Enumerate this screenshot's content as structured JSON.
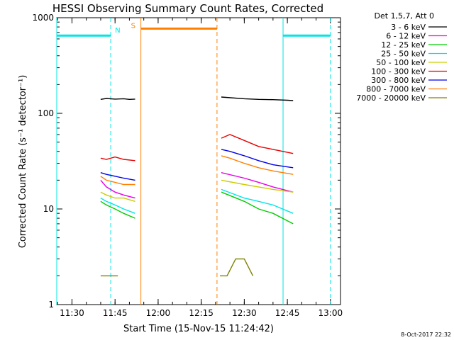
{
  "chart_data": {
    "type": "line",
    "title": "HESSI Observing Summary Count Rates, Corrected",
    "xlabel": "Start Time (15-Nov-15 11:24:42)",
    "ylabel": "Corrected Count Rate (s⁻¹ detector⁻¹)",
    "y_scale": "log",
    "ylim": [
      1,
      1000
    ],
    "xlim": [
      "11:24:42",
      "13:03:30"
    ],
    "x_ticks": [
      "11:30",
      "11:45",
      "12:00",
      "12:15",
      "12:30",
      "12:45",
      "13:00"
    ],
    "y_ticks": [
      "1",
      "10",
      "100",
      "1000"
    ],
    "legend_title": "Det 1,5,7, Att 0",
    "legend_position": "right-outside",
    "series": [
      {
        "name": "3 - 6 keV",
        "color": "#000000",
        "segments": [
          {
            "x": [
              "11:40:00",
              "11:42:00",
              "11:45:00",
              "11:48:00",
              "11:50:00",
              "11:52:00"
            ],
            "y": [
              140,
              143,
              141,
              142,
              140,
              141
            ]
          },
          {
            "x": [
              "12:22:00",
              "12:30:00",
              "12:35:00",
              "12:40:00",
              "12:45:00",
              "12:47:00"
            ],
            "y": [
              148,
              142,
              140,
              139,
              137,
              136
            ]
          }
        ]
      },
      {
        "name": "6 - 12 keV",
        "color": "#e600e6",
        "segments": [
          {
            "x": [
              "11:40:00",
              "11:42:00",
              "11:45:00",
              "11:48:00",
              "11:52:00"
            ],
            "y": [
              20,
              17,
              15,
              14,
              13
            ]
          },
          {
            "x": [
              "12:22:00",
              "12:30:00",
              "12:35:00",
              "12:40:00",
              "12:47:00"
            ],
            "y": [
              24,
              21,
              19,
              17,
              15
            ]
          }
        ]
      },
      {
        "name": "12 - 25 keV",
        "color": "#00cc00",
        "segments": [
          {
            "x": [
              "11:40:00",
              "11:42:00",
              "11:45:00",
              "11:48:00",
              "11:52:00"
            ],
            "y": [
              12,
              11,
              10,
              9,
              8
            ]
          },
          {
            "x": [
              "12:22:00",
              "12:30:00",
              "12:35:00",
              "12:40:00",
              "12:47:00"
            ],
            "y": [
              15,
              12,
              10,
              9,
              7
            ]
          }
        ]
      },
      {
        "name": "25 - 50 keV",
        "color": "#00e5e5",
        "segments": [
          {
            "x": [
              "11:40:00",
              "11:42:00",
              "11:45:00",
              "11:48:00",
              "11:52:00"
            ],
            "y": [
              13,
              12,
              11,
              10,
              9
            ]
          },
          {
            "x": [
              "12:22:00",
              "12:30:00",
              "12:35:00",
              "12:40:00",
              "12:47:00"
            ],
            "y": [
              16,
              13,
              12,
              11,
              9
            ]
          }
        ]
      },
      {
        "name": "50 - 100 keV",
        "color": "#cccc00",
        "segments": [
          {
            "x": [
              "11:40:00",
              "11:42:00",
              "11:45:00",
              "11:48:00",
              "11:52:00"
            ],
            "y": [
              15,
              14,
              13,
              13,
              12
            ]
          },
          {
            "x": [
              "12:22:00",
              "12:30:00",
              "12:35:00",
              "12:40:00",
              "12:47:00"
            ],
            "y": [
              20,
              18,
              17,
              16,
              15
            ]
          }
        ]
      },
      {
        "name": "100 - 300 keV",
        "color": "#e60000",
        "segments": [
          {
            "x": [
              "11:40:00",
              "11:42:00",
              "11:45:00",
              "11:48:00",
              "11:52:00"
            ],
            "y": [
              34,
              33,
              35,
              33,
              32
            ]
          },
          {
            "x": [
              "12:22:00",
              "12:25:00",
              "12:30:00",
              "12:35:00",
              "12:40:00",
              "12:47:00"
            ],
            "y": [
              55,
              60,
              52,
              45,
              42,
              38
            ]
          }
        ]
      },
      {
        "name": "300 - 800 keV",
        "color": "#0000e6",
        "segments": [
          {
            "x": [
              "11:40:00",
              "11:42:00",
              "11:45:00",
              "11:48:00",
              "11:52:00"
            ],
            "y": [
              24,
              23,
              22,
              21,
              20
            ]
          },
          {
            "x": [
              "12:22:00",
              "12:25:00",
              "12:30:00",
              "12:35:00",
              "12:40:00",
              "12:47:00"
            ],
            "y": [
              42,
              40,
              36,
              32,
              29,
              27
            ]
          }
        ]
      },
      {
        "name": "800 - 7000 keV",
        "color": "#ff7f00",
        "segments": [
          {
            "x": [
              "11:40:00",
              "11:42:00",
              "11:45:00",
              "11:48:00",
              "11:52:00"
            ],
            "y": [
              22,
              20,
              19,
              18,
              18
            ]
          },
          {
            "x": [
              "12:22:00",
              "12:25:00",
              "12:30:00",
              "12:35:00",
              "12:40:00",
              "12:47:00"
            ],
            "y": [
              36,
              34,
              30,
              27,
              25,
              23
            ]
          }
        ]
      },
      {
        "name": "7000 - 20000 keV",
        "color": "#808000",
        "segments": [
          {
            "x": [
              "11:40:00",
              "11:42:00",
              "11:44:00",
              "11:46:00"
            ],
            "y": [
              2,
              2,
              2,
              2
            ]
          },
          {
            "x": [
              "12:21:30",
              "12:24:00",
              "12:27:00",
              "12:30:00",
              "12:33:00"
            ],
            "y": [
              2,
              2,
              3,
              3,
              2
            ]
          }
        ]
      }
    ],
    "markers": {
      "night_label": "N",
      "saa_label": "S",
      "night_bars": [
        [
          "11:24:42",
          "11:43:30"
        ],
        [
          "12:43:30",
          "13:00:00"
        ]
      ],
      "saa_bar": [
        "11:54:00",
        "12:20:30"
      ],
      "night_color": "#00e5e5",
      "saa_color": "#ff7f00"
    }
  },
  "footer": {
    "timestamp": "8-Oct-2017 22:32"
  }
}
